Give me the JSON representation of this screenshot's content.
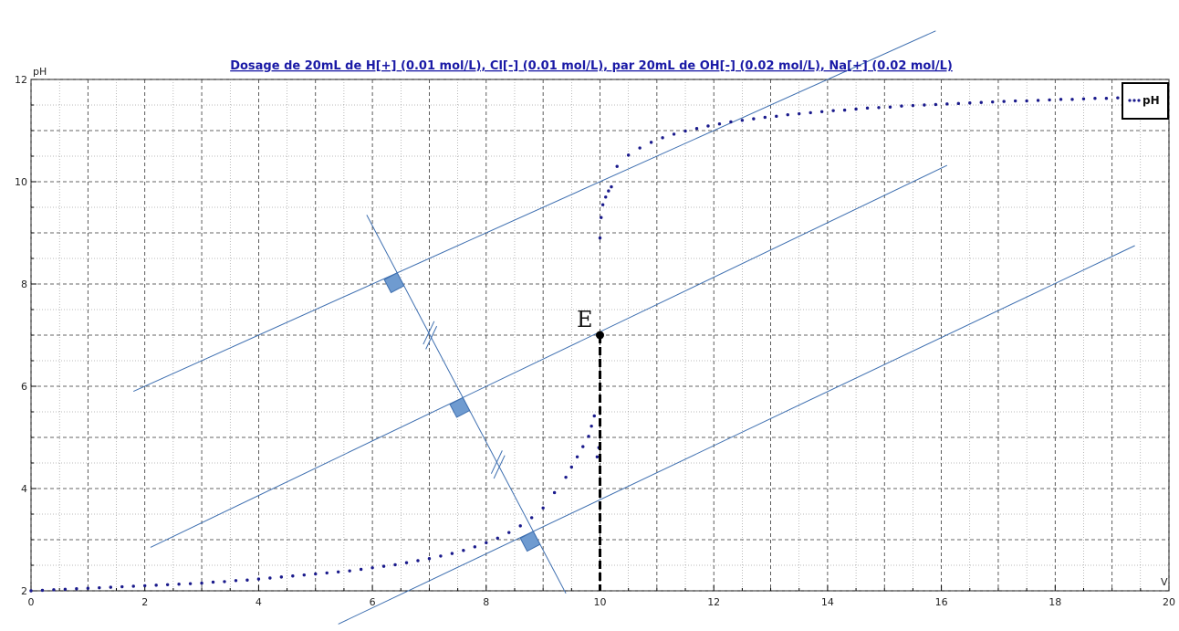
{
  "chart_data": {
    "type": "scatter",
    "title": "Dosage de 20mL de H[+] (0.01 mol/L), Cl[-] (0.01 mol/L),  par 20mL  de OH[-] (0.02 mol/L), Na[+] (0.02 mol/L)",
    "xlabel": "V",
    "ylabel": "pH",
    "xlim": [
      0,
      20
    ],
    "ylim": [
      2,
      12
    ],
    "x_ticks": [
      "0",
      "2",
      "4",
      "6",
      "8",
      "10",
      "12",
      "14",
      "16",
      "18",
      "20"
    ],
    "y_ticks": [
      "2",
      "4",
      "6",
      "8",
      "10",
      "12"
    ],
    "grid": true,
    "legend": {
      "position": "top-right",
      "entries": [
        "pH"
      ]
    },
    "series": [
      {
        "name": "pH",
        "color": "#1a1a8c",
        "x": [
          0.0,
          0.2,
          0.4,
          0.6,
          0.8,
          1.0,
          1.2,
          1.4,
          1.6,
          1.8,
          2.0,
          2.2,
          2.4,
          2.6,
          2.8,
          3.0,
          3.2,
          3.4,
          3.6,
          3.8,
          4.0,
          4.2,
          4.4,
          4.6,
          4.8,
          5.0,
          5.2,
          5.4,
          5.6,
          5.8,
          6.0,
          6.2,
          6.4,
          6.6,
          6.8,
          7.0,
          7.2,
          7.4,
          7.6,
          7.8,
          8.0,
          8.2,
          8.4,
          8.6,
          8.8,
          9.0,
          9.2,
          9.4,
          9.5,
          9.6,
          9.7,
          9.8,
          9.85,
          9.9,
          9.95,
          9.98,
          10.0,
          10.02,
          10.05,
          10.1,
          10.15,
          10.2,
          10.3,
          10.5,
          10.7,
          10.9,
          11.1,
          11.3,
          11.5,
          11.7,
          11.9,
          12.1,
          12.3,
          12.5,
          12.7,
          12.9,
          13.1,
          13.3,
          13.5,
          13.7,
          13.9,
          14.1,
          14.3,
          14.5,
          14.7,
          14.9,
          15.1,
          15.3,
          15.5,
          15.7,
          15.9,
          16.1,
          16.3,
          16.5,
          16.7,
          16.9,
          17.1,
          17.3,
          17.5,
          17.7,
          17.9,
          18.1,
          18.3,
          18.5,
          18.7,
          18.9,
          19.1,
          19.3,
          19.5,
          19.7
        ],
        "y": [
          2.0,
          2.01,
          2.02,
          2.03,
          2.04,
          2.05,
          2.06,
          2.07,
          2.08,
          2.09,
          2.1,
          2.11,
          2.12,
          2.13,
          2.14,
          2.15,
          2.17,
          2.18,
          2.2,
          2.21,
          2.23,
          2.25,
          2.27,
          2.29,
          2.31,
          2.33,
          2.35,
          2.37,
          2.39,
          2.42,
          2.45,
          2.48,
          2.51,
          2.55,
          2.59,
          2.63,
          2.68,
          2.73,
          2.79,
          2.86,
          2.94,
          3.03,
          3.14,
          3.27,
          3.43,
          3.62,
          3.92,
          4.22,
          4.42,
          4.62,
          4.82,
          5.02,
          5.22,
          5.42,
          4.62,
          4.8,
          8.9,
          9.3,
          9.55,
          9.7,
          9.82,
          9.9,
          10.3,
          10.52,
          10.66,
          10.77,
          10.86,
          10.93,
          10.99,
          11.04,
          11.09,
          11.13,
          11.17,
          11.2,
          11.23,
          11.26,
          11.28,
          11.31,
          11.33,
          11.35,
          11.37,
          11.39,
          11.4,
          11.42,
          11.44,
          11.45,
          11.46,
          11.48,
          11.49,
          11.5,
          11.51,
          11.52,
          11.53,
          11.54,
          11.55,
          11.56,
          11.57,
          11.58,
          11.58,
          11.59,
          11.6,
          11.61,
          11.61,
          11.62,
          11.63,
          11.63,
          11.64,
          11.65,
          11.65,
          11.66
        ]
      }
    ],
    "tangents": [
      {
        "name": "upper-tangent",
        "from": [
          1.8,
          5.9
        ],
        "to": [
          15.9,
          12.95
        ]
      },
      {
        "name": "middle-line",
        "from": [
          2.1,
          2.85
        ],
        "to": [
          16.1,
          10.32
        ]
      },
      {
        "name": "lower-tangent",
        "from": [
          5.4,
          1.35
        ],
        "to": [
          19.4,
          8.75
        ]
      },
      {
        "name": "perpendicular",
        "from": [
          5.9,
          9.35
        ],
        "to": [
          9.4,
          1.95
        ]
      }
    ],
    "equivalence_point": {
      "label": "E",
      "x": 10.0,
      "y": 7.0
    }
  }
}
